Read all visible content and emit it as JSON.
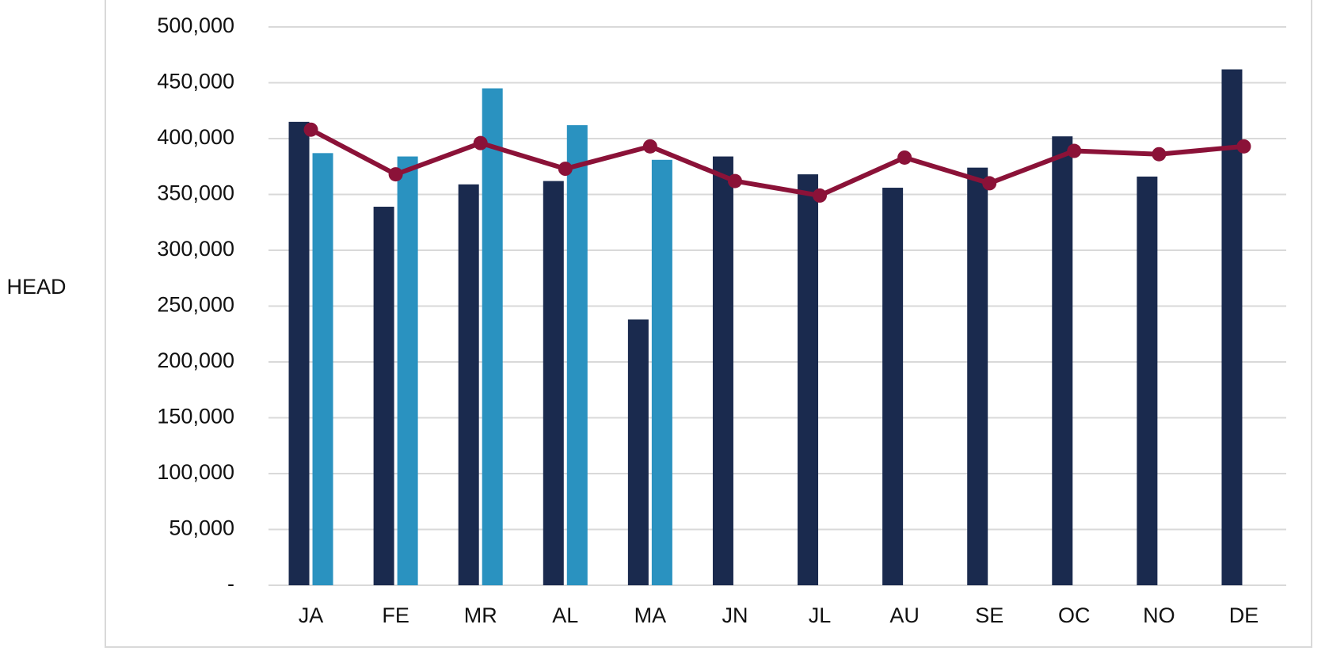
{
  "chart_data": {
    "type": "bar",
    "y_label": "HEAD",
    "categories": [
      "JA",
      "FE",
      "MR",
      "AL",
      "MA",
      "JN",
      "JL",
      "AU",
      "SE",
      "OC",
      "NO",
      "DE"
    ],
    "series": [
      {
        "type": "bar",
        "color": "#1a2a4e",
        "values": [
          415000,
          339000,
          359000,
          362000,
          238000,
          384000,
          368000,
          356000,
          374000,
          402000,
          366000,
          462000
        ]
      },
      {
        "type": "bar",
        "color": "#2a92c0",
        "values": [
          387000,
          384000,
          445000,
          412000,
          381000,
          null,
          null,
          null,
          null,
          null,
          null,
          null
        ]
      },
      {
        "type": "line",
        "color": "#8b1238",
        "values": [
          408000,
          368000,
          396000,
          373000,
          393000,
          362000,
          349000,
          383000,
          360000,
          389000,
          386000,
          393000
        ]
      }
    ],
    "ylim": [
      0,
      500000
    ],
    "yticks": [
      {
        "value": 0,
        "label": "-"
      },
      {
        "value": 50000,
        "label": "50,000"
      },
      {
        "value": 100000,
        "label": "100,000"
      },
      {
        "value": 150000,
        "label": "150,000"
      },
      {
        "value": 200000,
        "label": "200,000"
      },
      {
        "value": 250000,
        "label": "250,000"
      },
      {
        "value": 300000,
        "label": "300,000"
      },
      {
        "value": 350000,
        "label": "350,000"
      },
      {
        "value": 400000,
        "label": "400,000"
      },
      {
        "value": 450000,
        "label": "450,000"
      },
      {
        "value": 500000,
        "label": "500,000"
      }
    ],
    "grid": true
  }
}
